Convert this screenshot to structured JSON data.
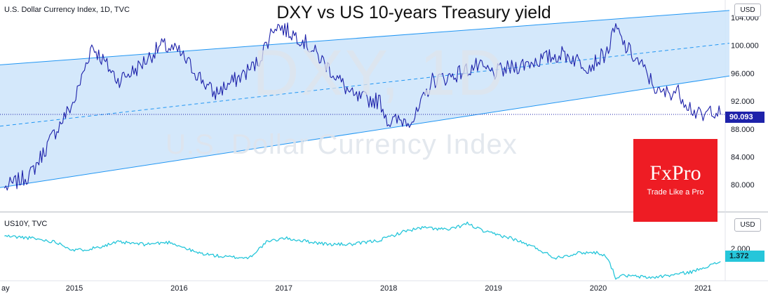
{
  "figure_title": "DXY vs US 10-years Treasury yield",
  "watermark": {
    "main": "DXY, 1D",
    "sub": "U.S. Dollar Currency Index"
  },
  "logo": {
    "main": "FxPro",
    "tagline": "Trade Like a Pro"
  },
  "colors": {
    "dxy_line": "#1e22aa",
    "yield_line": "#26c6da",
    "channel_fill": "#cfe6fb",
    "channel_line": "#2196f3"
  },
  "chart_data": [
    {
      "type": "line",
      "title": "U.S. Dollar Currency Index, 1D, TVC",
      "currency": "USD",
      "x": [
        "2014-05",
        "2014-08",
        "2014-11",
        "2015-01",
        "2015-03",
        "2015-06",
        "2015-08",
        "2015-11",
        "2016-01",
        "2016-05",
        "2016-08",
        "2016-10",
        "2016-12",
        "2017-03",
        "2017-06",
        "2017-09",
        "2017-12",
        "2018-01",
        "2018-04",
        "2018-06",
        "2018-08",
        "2018-11",
        "2019-01",
        "2019-05",
        "2019-09",
        "2019-12",
        "2020-02",
        "2020-03",
        "2020-04",
        "2020-06",
        "2020-08",
        "2020-10",
        "2020-12",
        "2021-01",
        "2021-02",
        "2021-03"
      ],
      "series": [
        {
          "values": [
            79.5,
            81.5,
            88.0,
            92.0,
            100.0,
            95.0,
            96.5,
            100.0,
            99.0,
            93.0,
            95.5,
            97.5,
            103.0,
            101.0,
            97.0,
            92.5,
            92.0,
            89.0,
            89.5,
            95.0,
            95.5,
            97.0,
            96.0,
            97.5,
            98.8,
            97.0,
            99.0,
            102.5,
            100.0,
            97.0,
            93.0,
            93.5,
            90.5,
            89.5,
            91.0,
            90.093
          ]
        }
      ],
      "y_ticks": [
        80.0,
        84.0,
        88.0,
        92.0,
        96.0,
        100.0,
        104.0
      ],
      "ylim": [
        76.5,
        106
      ],
      "last_value": "90.093",
      "channel": {
        "upper": [
          [
            0,
            97.2
          ],
          [
            1040,
            105.0
          ]
        ],
        "median": [
          [
            0,
            88.4
          ],
          [
            1040,
            100.3
          ]
        ],
        "lower": [
          [
            0,
            79.6
          ],
          [
            1040,
            95.6
          ]
        ]
      }
    },
    {
      "type": "line",
      "title": "US10Y, TVC",
      "currency": "USD",
      "x": [
        "2014-05",
        "2014-08",
        "2014-11",
        "2015-01",
        "2015-03",
        "2015-06",
        "2015-09",
        "2015-12",
        "2016-03",
        "2016-06",
        "2016-09",
        "2016-11",
        "2017-01",
        "2017-06",
        "2017-09",
        "2017-12",
        "2018-01",
        "2018-03",
        "2018-05",
        "2018-08",
        "2018-10",
        "2018-12",
        "2019-03",
        "2019-06",
        "2019-08",
        "2019-11",
        "2020-01",
        "2020-02",
        "2020-03",
        "2020-04",
        "2020-07",
        "2020-09",
        "2020-12",
        "2021-01",
        "2021-02",
        "2021-03"
      ],
      "series": [
        {
          "values": [
            2.6,
            2.5,
            2.3,
            1.9,
            2.0,
            2.3,
            2.2,
            2.3,
            1.8,
            1.6,
            1.55,
            2.3,
            2.5,
            2.2,
            2.2,
            2.4,
            2.55,
            2.85,
            3.0,
            2.9,
            3.2,
            2.8,
            2.5,
            2.0,
            1.55,
            1.8,
            1.8,
            1.6,
            0.6,
            0.7,
            0.6,
            0.7,
            0.9,
            1.1,
            1.2,
            1.372
          ]
        }
      ],
      "y_ticks": [
        2.0
      ],
      "ylim": [
        0.45,
        3.55
      ],
      "last_value": "1.372"
    }
  ],
  "x_axis": {
    "ticks": [
      "May",
      "2015",
      "2016",
      "2017",
      "2018",
      "2019",
      "2020",
      "2021"
    ]
  }
}
